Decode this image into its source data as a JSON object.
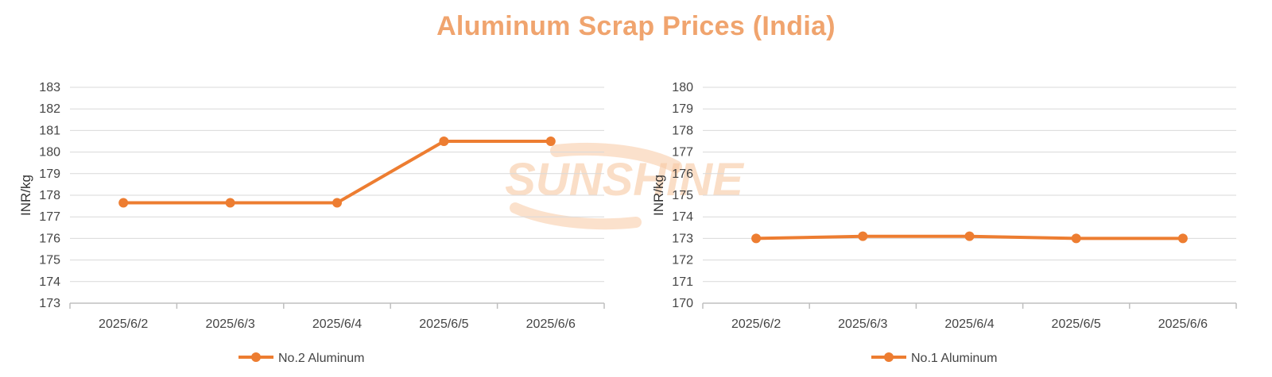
{
  "title": "Aluminum Scrap Prices (India)",
  "colors": {
    "title": "#f0a46e",
    "series": "#ed7d31",
    "grid": "#d9d9d9",
    "axis": "#bfbfbf",
    "watermark": "#f8c9a3"
  },
  "watermark": {
    "text": "SUNSHINE"
  },
  "chart_data": [
    {
      "type": "line",
      "x": [
        "2025/6/2",
        "2025/6/3",
        "2025/6/4",
        "2025/6/5",
        "2025/6/6"
      ],
      "series": [
        {
          "name": "No.2 Aluminum",
          "values": [
            177.65,
            177.65,
            177.65,
            180.5,
            180.5
          ]
        }
      ],
      "ylabel": "INR/kg",
      "ylim": [
        173,
        183
      ],
      "ystep": 1,
      "grid": true,
      "legend": "bottom"
    },
    {
      "type": "line",
      "x": [
        "2025/6/2",
        "2025/6/3",
        "2025/6/4",
        "2025/6/5",
        "2025/6/6"
      ],
      "series": [
        {
          "name": "No.1 Aluminum",
          "values": [
            173.0,
            173.1,
            173.1,
            173.0,
            173.0
          ]
        }
      ],
      "ylabel": "INR/kg",
      "ylim": [
        170,
        180
      ],
      "ystep": 1,
      "grid": true,
      "legend": "bottom"
    }
  ]
}
